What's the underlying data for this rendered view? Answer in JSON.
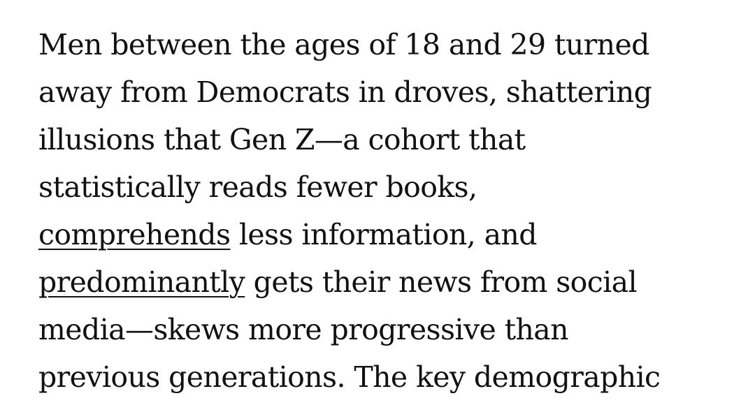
{
  "article": {
    "lines": [
      {
        "text": "Men between the ages of 18 and 29 turned"
      },
      {
        "text": "away from Democrats in droves, shattering"
      },
      {
        "text": "illusions that Gen Z—a cohort that"
      },
      {
        "text": "statistically reads fewer books,"
      },
      {
        "link": "comprehends",
        "text": " less information, and"
      },
      {
        "link": "predominantly",
        "text": " gets their news from social"
      },
      {
        "text": "media—skews more progressive than"
      },
      {
        "text": "previous generations. The key demographic"
      }
    ]
  }
}
